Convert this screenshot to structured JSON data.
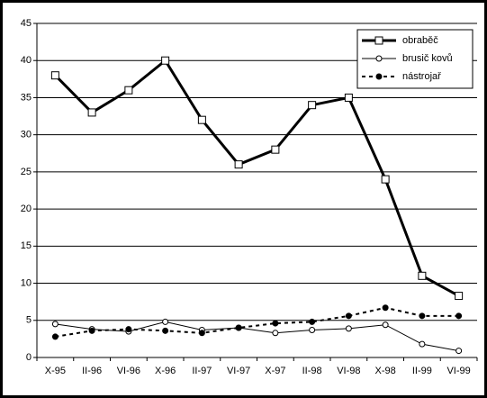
{
  "chart_data": {
    "type": "line",
    "categories": [
      "X-95",
      "II-96",
      "VI-96",
      "X-96",
      "II-97",
      "VI-97",
      "X-97",
      "II-98",
      "VI-98",
      "X-98",
      "II-99",
      "VI-99"
    ],
    "series": [
      {
        "name": "obraběč",
        "color": "#000000",
        "line_style": "solid-thick",
        "marker": "square",
        "values": [
          38,
          33,
          36,
          40,
          32,
          26,
          28,
          34,
          35,
          24,
          11,
          8.3
        ]
      },
      {
        "name": "brusič kovů",
        "color": "#000000",
        "line_style": "solid-thin",
        "marker": "open-circle",
        "values": [
          4.5,
          3.8,
          3.5,
          4.8,
          3.7,
          4.0,
          3.3,
          3.7,
          3.9,
          4.4,
          1.8,
          0.9
        ]
      },
      {
        "name": "nástrojař",
        "color": "#000000",
        "line_style": "dotted",
        "marker": "filled-circle",
        "values": [
          2.8,
          3.6,
          3.8,
          3.6,
          3.3,
          4.0,
          4.6,
          4.8,
          5.6,
          6.7,
          5.6,
          5.6
        ]
      }
    ],
    "ylim": [
      0,
      45
    ],
    "yticks": [
      0,
      5,
      10,
      15,
      20,
      25,
      30,
      35,
      40,
      45
    ],
    "grid": true,
    "legend": "top-right"
  }
}
